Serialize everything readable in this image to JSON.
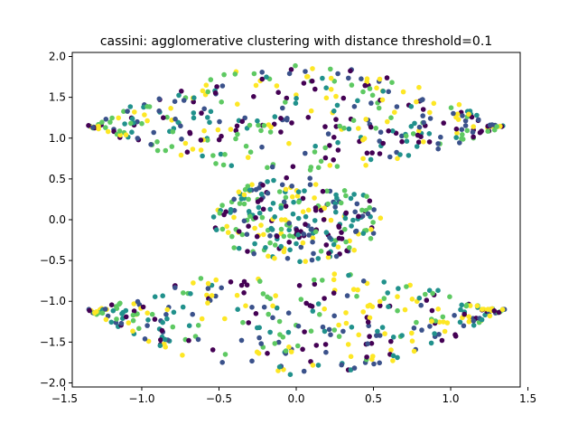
{
  "chart_data": {
    "type": "scatter",
    "title": "cassini: agglomerative clustering with distance threshold=0.1",
    "xlabel": "",
    "ylabel": "",
    "xlim": [
      -1.45,
      1.45
    ],
    "ylim": [
      -2.05,
      2.05
    ],
    "x_ticks": [
      -1.5,
      -1.0,
      -0.5,
      0.0,
      0.5,
      1.0,
      1.5
    ],
    "x_tick_labels": [
      "−1.5",
      "−1.0",
      "−0.5",
      "0.0",
      "0.5",
      "1.0",
      "1.5"
    ],
    "y_ticks": [
      -2.0,
      -1.5,
      -1.0,
      -0.5,
      0.0,
      0.5,
      1.0,
      1.5,
      2.0
    ],
    "y_tick_labels": [
      "−2.0",
      "−1.5",
      "−1.0",
      "−0.5",
      "0.0",
      "0.5",
      "1.0",
      "1.5",
      "2.0"
    ],
    "grid": false,
    "legend": "none",
    "colormap": [
      "#440154",
      "#3b528b",
      "#21918c",
      "#5ec962",
      "#fde725"
    ],
    "point_count_per_component": {
      "top_band": 380,
      "middle_ellipse": 260,
      "bottom_band": 360
    },
    "components": [
      {
        "label": "top band",
        "x_range": [
          -1.35,
          1.35
        ],
        "y_range": [
          0.6,
          1.9
        ]
      },
      {
        "label": "middle ellipse",
        "x_range": [
          -0.55,
          0.55
        ],
        "y_range": [
          -0.5,
          0.55
        ]
      },
      {
        "label": "bottom band",
        "x_range": [
          -1.35,
          1.35
        ],
        "y_range": [
          -1.9,
          -0.6
        ]
      }
    ]
  }
}
